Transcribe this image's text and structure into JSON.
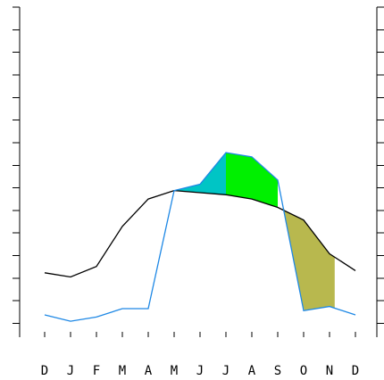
{
  "chart_data": {
    "type": "line",
    "categories": [
      "D",
      "J",
      "F",
      "M",
      "A",
      "M",
      "J",
      "J",
      "A",
      "S",
      "O",
      "N",
      "D"
    ],
    "ylim": [
      0,
      15
    ],
    "y_tick_count": 15,
    "grid": false,
    "legend": "none",
    "series": [
      {
        "line_color": "#000000",
        "values": [
          2.4,
          2.2,
          2.7,
          4.6,
          5.9,
          6.3,
          6.2,
          6.1,
          5.9,
          5.5,
          4.9,
          3.3,
          2.5
        ]
      },
      {
        "line_color": "#1e88e5",
        "values": [
          0.4,
          0.1,
          0.3,
          0.7,
          0.7,
          6.3,
          6.6,
          8.1,
          7.9,
          6.8,
          0.6,
          0.8,
          0.4
        ]
      }
    ],
    "shaded_regions": [
      {
        "from": 5,
        "to": 7,
        "color": "#00c5c5",
        "between": "lower and upper"
      },
      {
        "from": 7,
        "to": 9,
        "color": "#00f000",
        "between": "lower and upper"
      },
      {
        "from": 9.2,
        "to": 11.2,
        "color": "#b8b84e",
        "between": "upper and lower"
      }
    ]
  }
}
